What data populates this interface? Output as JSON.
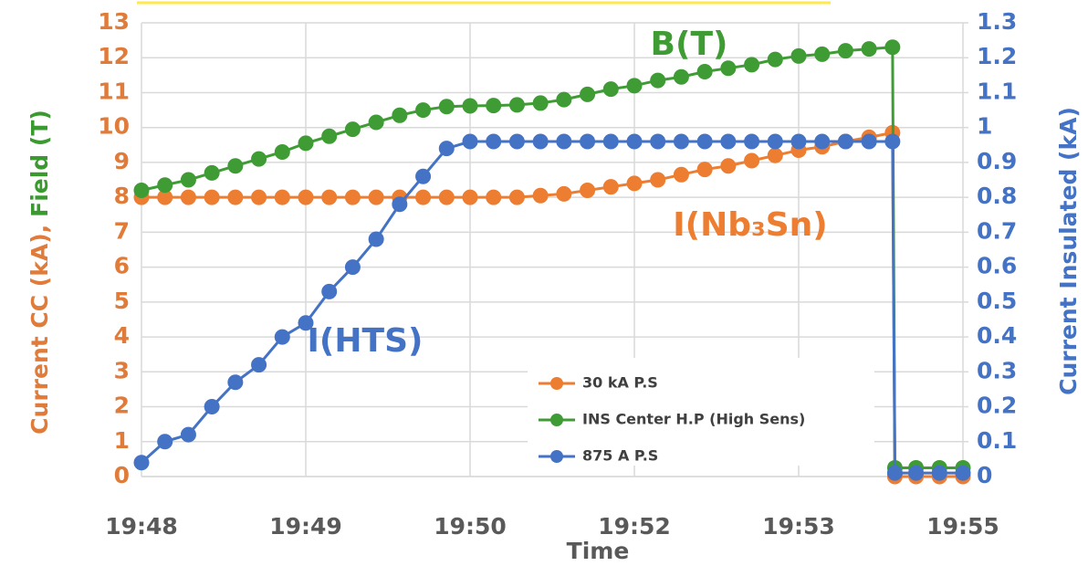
{
  "chart_data": {
    "type": "line",
    "xlabel": "Time",
    "ylabel_parts": [
      {
        "text": "Current CC (kA),",
        "color": "#e07b39"
      },
      {
        "text": "Field (T)",
        "color": "#3a9a30"
      }
    ],
    "y2label": "Current Insulated (kA)",
    "xlim": [
      48,
      55
    ],
    "xticks": [
      {
        "value": 48,
        "label": "19:48"
      },
      {
        "value": 49.4,
        "label": "19:49"
      },
      {
        "value": 50.8,
        "label": "19:50"
      },
      {
        "value": 52.2,
        "label": "19:52"
      },
      {
        "value": 53.6,
        "label": "19:53"
      },
      {
        "value": 55,
        "label": "19:55"
      }
    ],
    "ylim": [
      0,
      13
    ],
    "yticks": [
      0,
      1,
      2,
      3,
      4,
      5,
      6,
      7,
      8,
      9,
      10,
      11,
      12,
      13
    ],
    "y2lim": [
      0,
      1.3
    ],
    "y2ticks": [
      0,
      0.1,
      0.2,
      0.3,
      0.4,
      0.5,
      0.6,
      0.7,
      0.8,
      0.9,
      1,
      1.1,
      1.2,
      1.3
    ],
    "grid": true,
    "legend": "lower-right",
    "x": [
      48,
      48.2,
      48.4,
      48.6,
      48.8,
      49,
      49.2,
      49.4,
      49.6,
      49.8,
      50,
      50.2,
      50.4,
      50.6,
      50.8,
      51,
      51.2,
      51.4,
      51.6,
      51.8,
      52,
      52.2,
      52.4,
      52.6,
      52.8,
      53,
      53.2,
      53.4,
      53.6,
      53.8,
      54,
      54.2,
      54.4,
      54.42,
      54.6,
      54.8,
      55
    ],
    "series": [
      {
        "name": "30 kA P.S",
        "color": "#ed7d31",
        "values": [
          8,
          8,
          8,
          8,
          8,
          8,
          8,
          8,
          8,
          8,
          8,
          8,
          8,
          8,
          8,
          8,
          8,
          8.05,
          8.1,
          8.2,
          8.3,
          8.4,
          8.5,
          8.65,
          8.8,
          8.9,
          9.05,
          9.2,
          9.35,
          9.45,
          9.6,
          9.72,
          9.85,
          0,
          0,
          0,
          0
        ]
      },
      {
        "name": "INS Center H.P (High Sens)",
        "color": "#3f9c35",
        "values": [
          8.2,
          8.35,
          8.5,
          8.7,
          8.9,
          9.1,
          9.3,
          9.55,
          9.75,
          9.95,
          10.15,
          10.35,
          10.5,
          10.6,
          10.62,
          10.63,
          10.65,
          10.7,
          10.8,
          10.95,
          11.1,
          11.2,
          11.35,
          11.45,
          11.6,
          11.7,
          11.8,
          11.95,
          12.05,
          12.1,
          12.2,
          12.25,
          12.3,
          0.25,
          0.25,
          0.25,
          0.25
        ]
      },
      {
        "name": "875 A P.S",
        "color": "#4472c4",
        "axis": "y2",
        "values": [
          0.04,
          0.1,
          0.12,
          0.2,
          0.27,
          0.32,
          0.4,
          0.44,
          0.53,
          0.6,
          0.68,
          0.78,
          0.86,
          0.94,
          0.96,
          0.96,
          0.96,
          0.96,
          0.96,
          0.96,
          0.96,
          0.96,
          0.96,
          0.96,
          0.96,
          0.96,
          0.96,
          0.96,
          0.96,
          0.96,
          0.96,
          0.96,
          0.96,
          0.01,
          0.01,
          0.01,
          0.01
        ]
      }
    ],
    "annotations": [
      {
        "text": "B(T)",
        "color": "#3f9c35"
      },
      {
        "text": "I(Nb₃Sn)",
        "color": "#ed7d31"
      },
      {
        "text": "I(HTS)",
        "color": "#4472c4"
      }
    ]
  }
}
